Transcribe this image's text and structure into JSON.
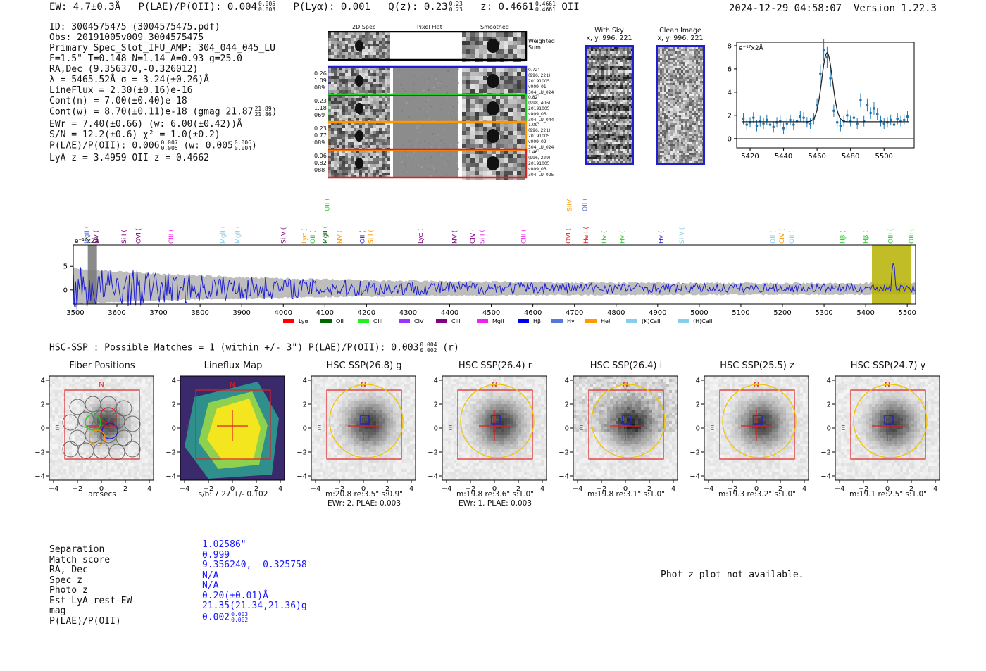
{
  "header": {
    "ew": "EW: 4.7±0.3Å",
    "plae_label": "P(LAE)/P(OII): 0.004",
    "plae_hi": "0.005",
    "plae_lo": "0.003",
    "plya": "P(Lyα): 0.001",
    "qz_label": "Q(z): 0.23",
    "qz_hi": "0.23",
    "qz_lo": "0.23",
    "z_label": "z: 0.4661",
    "z_hi": "0.4661",
    "z_lo": "0.4661",
    "z_line": "OII",
    "timestamp": "2024-12-29 04:58:07",
    "version": "Version 1.22.3"
  },
  "info": {
    "id": "ID: 3004575475 (3004575475.pdf)",
    "obs": "Obs: 20191005v009_3004575475",
    "primary": "Primary Spec_Slot_IFU_AMP: 304_044_045_LU",
    "params": "F=1.5\"  T=0.148  N=1.14  A=0.93  g=25.0",
    "radec": "RA,Dec (9.356370,-0.326012)",
    "lambda": "λ = 5465.52Å  σ = 3.24(±0.26)Å",
    "lineflux": "LineFlux = 2.30(±0.16)e-16",
    "contn": "Cont(n) = 7.00(±0.40)e-18",
    "contw": "Cont(w) = 8.70(±0.11)e-18 (gmag 21.87",
    "contw_hi": "21.89",
    "contw_lo": "21.86",
    "contw_end": ")",
    "ewr": "EWr = 7.40(±0.66) (w: 6.00(±0.42))Å",
    "sn": "S/N = 12.2(±0.6)  χ² = 1.0(±0.2)",
    "plae": "P(LAE)/P(OII): 0.006",
    "plae_hi": "0.007",
    "plae_lo": "0.005",
    "plae_w": "(w: 0.005",
    "plae_w_hi": "0.006",
    "plae_w_lo": "0.004",
    "plae_w_end": ")",
    "lya_z": "LyA z = 3.4959  OII z = 0.4662"
  },
  "cutouts": {
    "col_titles": [
      "2D Spec",
      "Pixel Flat",
      "Smoothed"
    ],
    "weighted_sum": [
      "Weighted",
      "Sum"
    ],
    "rows": [
      {
        "left": [
          "0.26",
          "1.09",
          "089"
        ],
        "right": [
          "0.72\"",
          "(996, 221)",
          "20191005",
          "v009_01",
          "304_LU_024"
        ],
        "color": "#1f1fd0"
      },
      {
        "left": [
          "0.23",
          "1.18",
          "069"
        ],
        "right": [
          "0.82\"",
          "(998, 406)",
          "20191005",
          "v009_03",
          "304_LU_044"
        ],
        "color": "#22cc22"
      },
      {
        "left": [
          "0.23",
          "0.77",
          "089"
        ],
        "right": [
          "1.09\"",
          "(996, 221)",
          "20191005",
          "v009_02",
          "304_LU_024"
        ],
        "color": "#ff9900"
      },
      {
        "left": [
          "0.06",
          "0.82",
          "088"
        ],
        "right": [
          "1.46\"",
          "(996, 229)",
          "20191005",
          "v009_03",
          "304_LU_025"
        ],
        "color": "#dd2222"
      }
    ]
  },
  "sky": {
    "with_sky_title": "With Sky",
    "with_sky_xy": "x, y: 996, 221",
    "clean_title": "Clean Image",
    "clean_xy": "x, y: 996, 221"
  },
  "chart_data": [
    {
      "type": "line",
      "title": "",
      "ylabel": "e⁻¹⁷x2Å",
      "xlim": [
        5412,
        5518
      ],
      "ylim": [
        -0.8,
        8.3
      ],
      "xticks": [
        5420,
        5440,
        5460,
        5480,
        5500
      ],
      "yticks": [
        0,
        2,
        4,
        6,
        8
      ],
      "series": [
        {
          "kind": "points",
          "x": [
            5416,
            5418,
            5420,
            5422,
            5424,
            5426,
            5428,
            5430,
            5432,
            5434,
            5436,
            5438,
            5440,
            5442,
            5444,
            5446,
            5448,
            5450,
            5452,
            5454,
            5456,
            5458,
            5460,
            5462,
            5464,
            5466,
            5468,
            5470,
            5472,
            5474,
            5476,
            5478,
            5480,
            5482,
            5484,
            5486,
            5488,
            5490,
            5492,
            5494,
            5496,
            5498,
            5500,
            5502,
            5504,
            5506,
            5508,
            5510,
            5512,
            5514
          ],
          "y": [
            1.7,
            1.2,
            1.4,
            1.8,
            1.1,
            1.5,
            1.3,
            1.6,
            1.2,
            1.0,
            1.4,
            1.5,
            0.9,
            1.3,
            1.6,
            1.2,
            1.5,
            1.9,
            1.8,
            1.4,
            1.3,
            1.7,
            2.9,
            5.6,
            7.6,
            7.0,
            5.2,
            2.4,
            1.4,
            1.1,
            1.5,
            2.0,
            1.5,
            1.8,
            1.3,
            3.3,
            1.5,
            2.9,
            2.2,
            2.6,
            2.1,
            1.5,
            1.3,
            1.4,
            1.6,
            1.2,
            1.7,
            1.5,
            1.6,
            1.9
          ]
        },
        {
          "kind": "fit",
          "center": 5466,
          "sigma": 3.2,
          "amp": 5.95,
          "base": 1.45
        }
      ]
    },
    {
      "type": "line",
      "title": "",
      "ylabel": "e⁻¹⁷x2Å",
      "xlim": [
        3495,
        5520
      ],
      "ylim": [
        -3.0,
        9.5
      ],
      "xticks": [
        3500,
        3600,
        3700,
        3800,
        3900,
        4000,
        4100,
        4200,
        4300,
        4400,
        4500,
        4600,
        4700,
        4800,
        4900,
        5000,
        5100,
        5200,
        5300,
        5400,
        5500
      ],
      "yticks": [
        0,
        5
      ],
      "highlights": [
        {
          "from": 3530,
          "to": 3552,
          "color": "#777777"
        },
        {
          "from": 5415,
          "to": 5510,
          "color": "#b5b100"
        }
      ],
      "line_labels": [
        {
          "name": "MgII",
          "x": 3527,
          "color": "#5577dd",
          "row": 0
        },
        {
          "name": "NV",
          "x": 3550,
          "color": "#800080",
          "row": 0
        },
        {
          "name": "SiII",
          "x": 3617,
          "color": "#800080",
          "row": 0
        },
        {
          "name": "OVI",
          "x": 3652,
          "color": "#800080",
          "row": 0
        },
        {
          "name": "CIII",
          "x": 3730,
          "color": "#ee22ee",
          "row": 0
        },
        {
          "name": "MgII",
          "x": 3855,
          "color": "#87ceeb",
          "row": 0
        },
        {
          "name": "MgII",
          "x": 3890,
          "color": "#87ceeb",
          "row": 0
        },
        {
          "name": "SiIV",
          "x": 4000,
          "color": "#800080",
          "row": 0
        },
        {
          "name": "Lyα",
          "x": 4050,
          "color": "#ff9900",
          "row": 0
        },
        {
          "name": "OII",
          "x": 4071,
          "color": "#22cc22",
          "row": 0
        },
        {
          "name": "OII",
          "x": 4105,
          "color": "#22cc22",
          "row": 1
        },
        {
          "name": "MgII",
          "x": 4100,
          "color": "#006600",
          "row": 0
        },
        {
          "name": "NV",
          "x": 4135,
          "color": "#ff9900",
          "row": 0
        },
        {
          "name": "OII",
          "x": 4190,
          "color": "#1f1fd0",
          "row": 0
        },
        {
          "name": "SiII",
          "x": 4210,
          "color": "#ff9900",
          "row": 0
        },
        {
          "name": "Lyα",
          "x": 4330,
          "color": "#800080",
          "row": 0
        },
        {
          "name": "NV",
          "x": 4412,
          "color": "#800080",
          "row": 0
        },
        {
          "name": "CIV",
          "x": 4455,
          "color": "#800080",
          "row": 0
        },
        {
          "name": "SiII",
          "x": 4478,
          "color": "#ee22ee",
          "row": 0
        },
        {
          "name": "CIII",
          "x": 4578,
          "color": "#ee22ee",
          "row": 0
        },
        {
          "name": "OVI",
          "x": 4685,
          "color": "#dd2222",
          "row": 0
        },
        {
          "name": "SiIV",
          "x": 4688,
          "color": "#ff9900",
          "row": 1
        },
        {
          "name": "OII",
          "x": 4725,
          "color": "#5577dd",
          "row": 1
        },
        {
          "name": "HeII",
          "x": 4728,
          "color": "#dd2222",
          "row": 0
        },
        {
          "name": "Hγ",
          "x": 4772,
          "color": "#22cc22",
          "row": 0
        },
        {
          "name": "Hγ",
          "x": 4815,
          "color": "#22cc22",
          "row": 0
        },
        {
          "name": "Hγ",
          "x": 4908,
          "color": "#1f1fd0",
          "row": 0
        },
        {
          "name": "SiIV",
          "x": 4958,
          "color": "#87ceeb",
          "row": 0
        },
        {
          "name": "OII",
          "x": 5177,
          "color": "#87ceeb",
          "row": 0
        },
        {
          "name": "CIV",
          "x": 5198,
          "color": "#ff9900",
          "row": 0
        },
        {
          "name": "OII",
          "x": 5222,
          "color": "#87ceeb",
          "row": 0
        },
        {
          "name": "Hβ",
          "x": 5345,
          "color": "#22cc22",
          "row": 0
        },
        {
          "name": "Hβ",
          "x": 5400,
          "color": "#22cc22",
          "row": 0
        },
        {
          "name": "OIII",
          "x": 5460,
          "color": "#22cc22",
          "row": 0
        },
        {
          "name": "OIII",
          "x": 5510,
          "color": "#22cc22",
          "row": 0
        }
      ],
      "legend": [
        {
          "name": "Lyα",
          "color": "#ff0000"
        },
        {
          "name": "OII",
          "color": "#006600"
        },
        {
          "name": "OIII",
          "color": "#22ee22"
        },
        {
          "name": "CIV",
          "color": "#9933ff"
        },
        {
          "name": "CIII",
          "color": "#800080"
        },
        {
          "name": "MgII",
          "color": "#ee22ee"
        },
        {
          "name": "Hβ",
          "color": "#0000ee"
        },
        {
          "name": "Hγ",
          "color": "#5577dd"
        },
        {
          "name": "HeII",
          "color": "#ff9900"
        },
        {
          "name": "(K)CaII",
          "color": "#87ceeb"
        },
        {
          "name": "(H)CaII",
          "color": "#87ceeb"
        }
      ]
    }
  ],
  "hsc": {
    "summary": "HSC-SSP : Possible Matches = 1 (within +/- 3\")  P(LAE)/P(OII): 0.003",
    "summary_hi": "0.004",
    "summary_lo": "0.002",
    "summary_end": "(r)",
    "panels": [
      {
        "title": "Fiber Positions",
        "cap1": "arcsecs",
        "cap2": "",
        "kind": "fiber"
      },
      {
        "title": "Lineflux Map",
        "cap1": "s/b: 7.27 +/- 0.102",
        "cap2": "",
        "kind": "flux"
      },
      {
        "title": "HSC SSP(26.8) g",
        "cap1": "m:20.8  re:3.5\"  s:0.9\"",
        "cap2": "EWr: 2. PLAE: 0.003",
        "kind": "hsc"
      },
      {
        "title": "HSC SSP(26.4) r",
        "cap1": "m:19.8  re:3.6\"  s:1.0\"",
        "cap2": "EWr: 1. PLAE: 0.003",
        "kind": "hsc"
      },
      {
        "title": "HSC SSP(26.4) i",
        "cap1": "m:19.8  re:3.1\"  s:1.0\"",
        "cap2": "",
        "kind": "hsc"
      },
      {
        "title": "HSC SSP(25.5) z",
        "cap1": "m:19.3  re:3.2\"  s:1.0\"",
        "cap2": "",
        "kind": "hsc"
      },
      {
        "title": "HSC SSP(24.7) y",
        "cap1": "m:19.1  re:2.5\"  s:1.0\"",
        "cap2": "",
        "kind": "hsc"
      }
    ],
    "axis_ticks": [
      "4",
      "2",
      "0",
      "−2",
      "−4"
    ],
    "x_ticks": [
      "−4",
      "−2",
      "0",
      "2",
      "4"
    ],
    "north": "N",
    "east": "E"
  },
  "match": {
    "keys": [
      "Separation",
      "Match score",
      "RA, Dec",
      "Spec z",
      "Photo z",
      "Est LyA rest-EW",
      "mag",
      "P(LAE)/P(OII)"
    ],
    "values": [
      "1.02586\"",
      "0.999",
      "9.356240, -0.325758",
      "N/A",
      "N/A",
      "0.20(±0.01)Å",
      "21.35(21.34,21.36)g",
      "0.002"
    ],
    "plae_hi": "0.003",
    "plae_lo": "0.002",
    "photz_note": "Phot z plot not available."
  }
}
